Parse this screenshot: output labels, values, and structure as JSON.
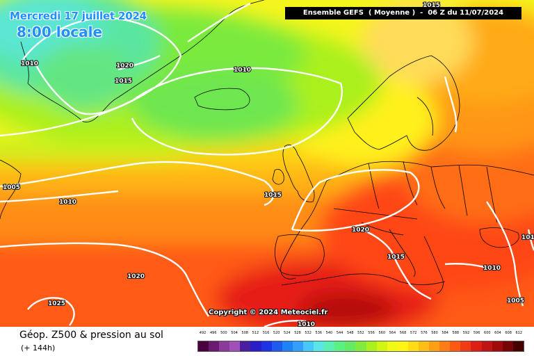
{
  "header": {
    "date": "Mercredi 17 juillet 2024",
    "time": "8:00 locale",
    "run": "Ensemble GEFS  ( Moyenne )  -  06 Z du 11/07/2024"
  },
  "map": {
    "copyright": "Copyright © 2024 Meteociel.fr",
    "isobar_labels": [
      "1015",
      "1010",
      "1020",
      "1015",
      "1010",
      "1005",
      "1010",
      "1015",
      "1020",
      "1015",
      "1010",
      "1010",
      "1020",
      "1025",
      "1010",
      "1005"
    ]
  },
  "footer": {
    "title": "Géop. Z500 & pression au sol",
    "subtitle": "(+ 144h)"
  },
  "legend": {
    "labels": [
      "492",
      "496",
      "500",
      "504",
      "508",
      "512",
      "516",
      "520",
      "524",
      "528",
      "532",
      "536",
      "540",
      "544",
      "548",
      "552",
      "556",
      "560",
      "564",
      "568",
      "572",
      "576",
      "580",
      "584",
      "588",
      "592",
      "596",
      "600",
      "604",
      "608",
      "612"
    ],
    "colors": [
      "#4a0040",
      "#6b1a70",
      "#8a3a9a",
      "#a050b8",
      "#4a1ea0",
      "#2a1ec8",
      "#1e32e6",
      "#1e5af0",
      "#1e82f5",
      "#32a0fa",
      "#46c8fa",
      "#5ae6e6",
      "#5af0b4",
      "#5af082",
      "#64ea64",
      "#82ea3c",
      "#aaf01e",
      "#d2f514",
      "#f0fa14",
      "#fff514",
      "#ffdc14",
      "#ffbe14",
      "#ffa014",
      "#ff7d14",
      "#ff5a14",
      "#f03c14",
      "#dc1e14",
      "#be1414",
      "#a00a0a",
      "#780505",
      "#460000"
    ]
  }
}
